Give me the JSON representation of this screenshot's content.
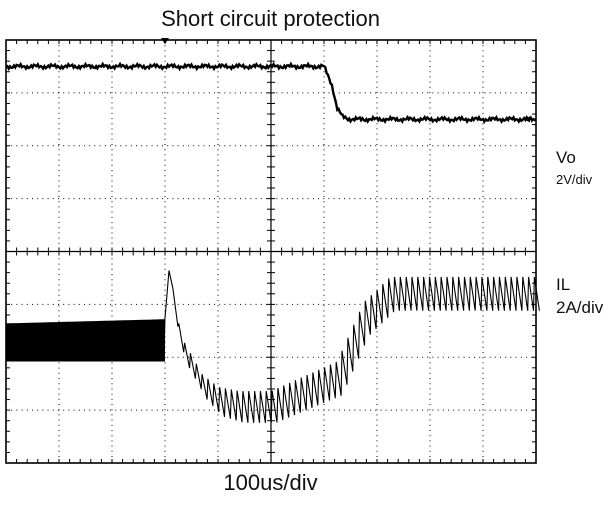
{
  "chart_data": {
    "type": "line",
    "title": "Short circuit protection",
    "xlabel": "100us/div",
    "x_divisions": 10,
    "y_divisions": 8,
    "grid": true,
    "channels": [
      {
        "name": "Vo",
        "scale": "2V/div",
        "points": [
          [
            0,
            7.0
          ],
          [
            6.0,
            7.0
          ],
          [
            6.15,
            6.3
          ],
          [
            6.25,
            5.4
          ],
          [
            6.35,
            5.1
          ],
          [
            6.5,
            5.0
          ],
          [
            10.0,
            5.0
          ]
        ]
      },
      {
        "name": "IL",
        "scale": "2A/div",
        "envelope_top": [
          [
            0,
            3.3
          ],
          [
            6.0,
            3.4
          ],
          [
            6.2,
            4.5
          ],
          [
            6.6,
            3.0
          ],
          [
            7.4,
            2.1
          ],
          [
            8.0,
            1.8
          ],
          [
            8.8,
            1.7
          ],
          [
            10.0,
            1.7
          ],
          [
            12.5,
            2.4
          ],
          [
            13.5,
            3.8
          ],
          [
            14.5,
            4.4
          ],
          [
            20.0,
            4.4
          ]
        ],
        "envelope_bottom": [
          [
            0,
            2.4
          ],
          [
            6.0,
            2.4
          ],
          [
            6.2,
            3.5
          ],
          [
            6.6,
            2.4
          ],
          [
            7.4,
            1.5
          ],
          [
            8.0,
            1.1
          ],
          [
            8.8,
            0.95
          ],
          [
            10.0,
            0.95
          ],
          [
            12.5,
            1.6
          ],
          [
            13.5,
            3.0
          ],
          [
            14.5,
            3.6
          ],
          [
            20.0,
            3.6
          ]
        ]
      }
    ]
  }
}
